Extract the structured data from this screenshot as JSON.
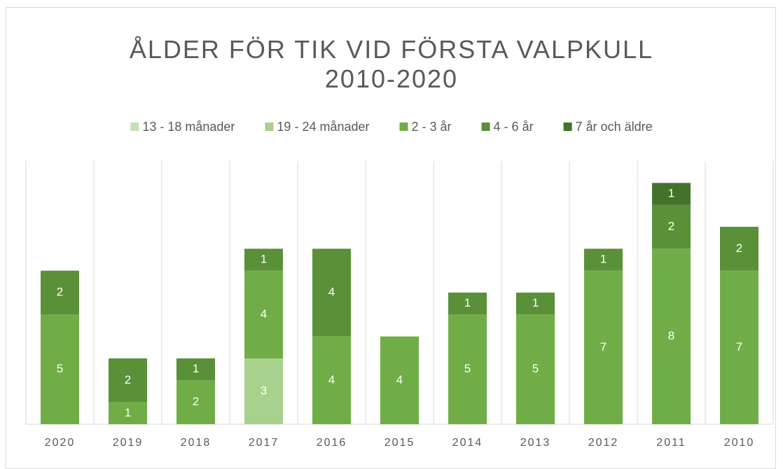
{
  "chart_data": {
    "type": "stacked_bar",
    "title": "ÅLDER FÖR TIK VID FÖRSTA VALPKULL 2010-2020",
    "categories": [
      "2020",
      "2019",
      "2018",
      "2017",
      "2016",
      "2015",
      "2014",
      "2013",
      "2012",
      "2011",
      "2010"
    ],
    "series": [
      {
        "name": "13 - 18 månader",
        "color": "#c5e0b4",
        "values": [
          null,
          null,
          null,
          null,
          null,
          null,
          null,
          null,
          null,
          null,
          null
        ]
      },
      {
        "name": "19 - 24 månader",
        "color": "#a9d18e",
        "values": [
          null,
          null,
          null,
          3,
          null,
          null,
          null,
          null,
          null,
          null,
          null
        ]
      },
      {
        "name": "2 - 3 år",
        "color": "#70ad47",
        "values": [
          5,
          1,
          2,
          4,
          4,
          4,
          5,
          5,
          7,
          8,
          7
        ]
      },
      {
        "name": "4 - 6 år",
        "color": "#5a9038",
        "values": [
          2,
          2,
          1,
          1,
          4,
          null,
          1,
          1,
          1,
          2,
          2
        ]
      },
      {
        "name": "7 år och äldre",
        "color": "#43732b",
        "values": [
          null,
          null,
          null,
          null,
          null,
          null,
          null,
          null,
          null,
          1,
          null
        ]
      }
    ],
    "ylim": [
      0,
      12
    ],
    "grid": true,
    "legend": "top"
  }
}
